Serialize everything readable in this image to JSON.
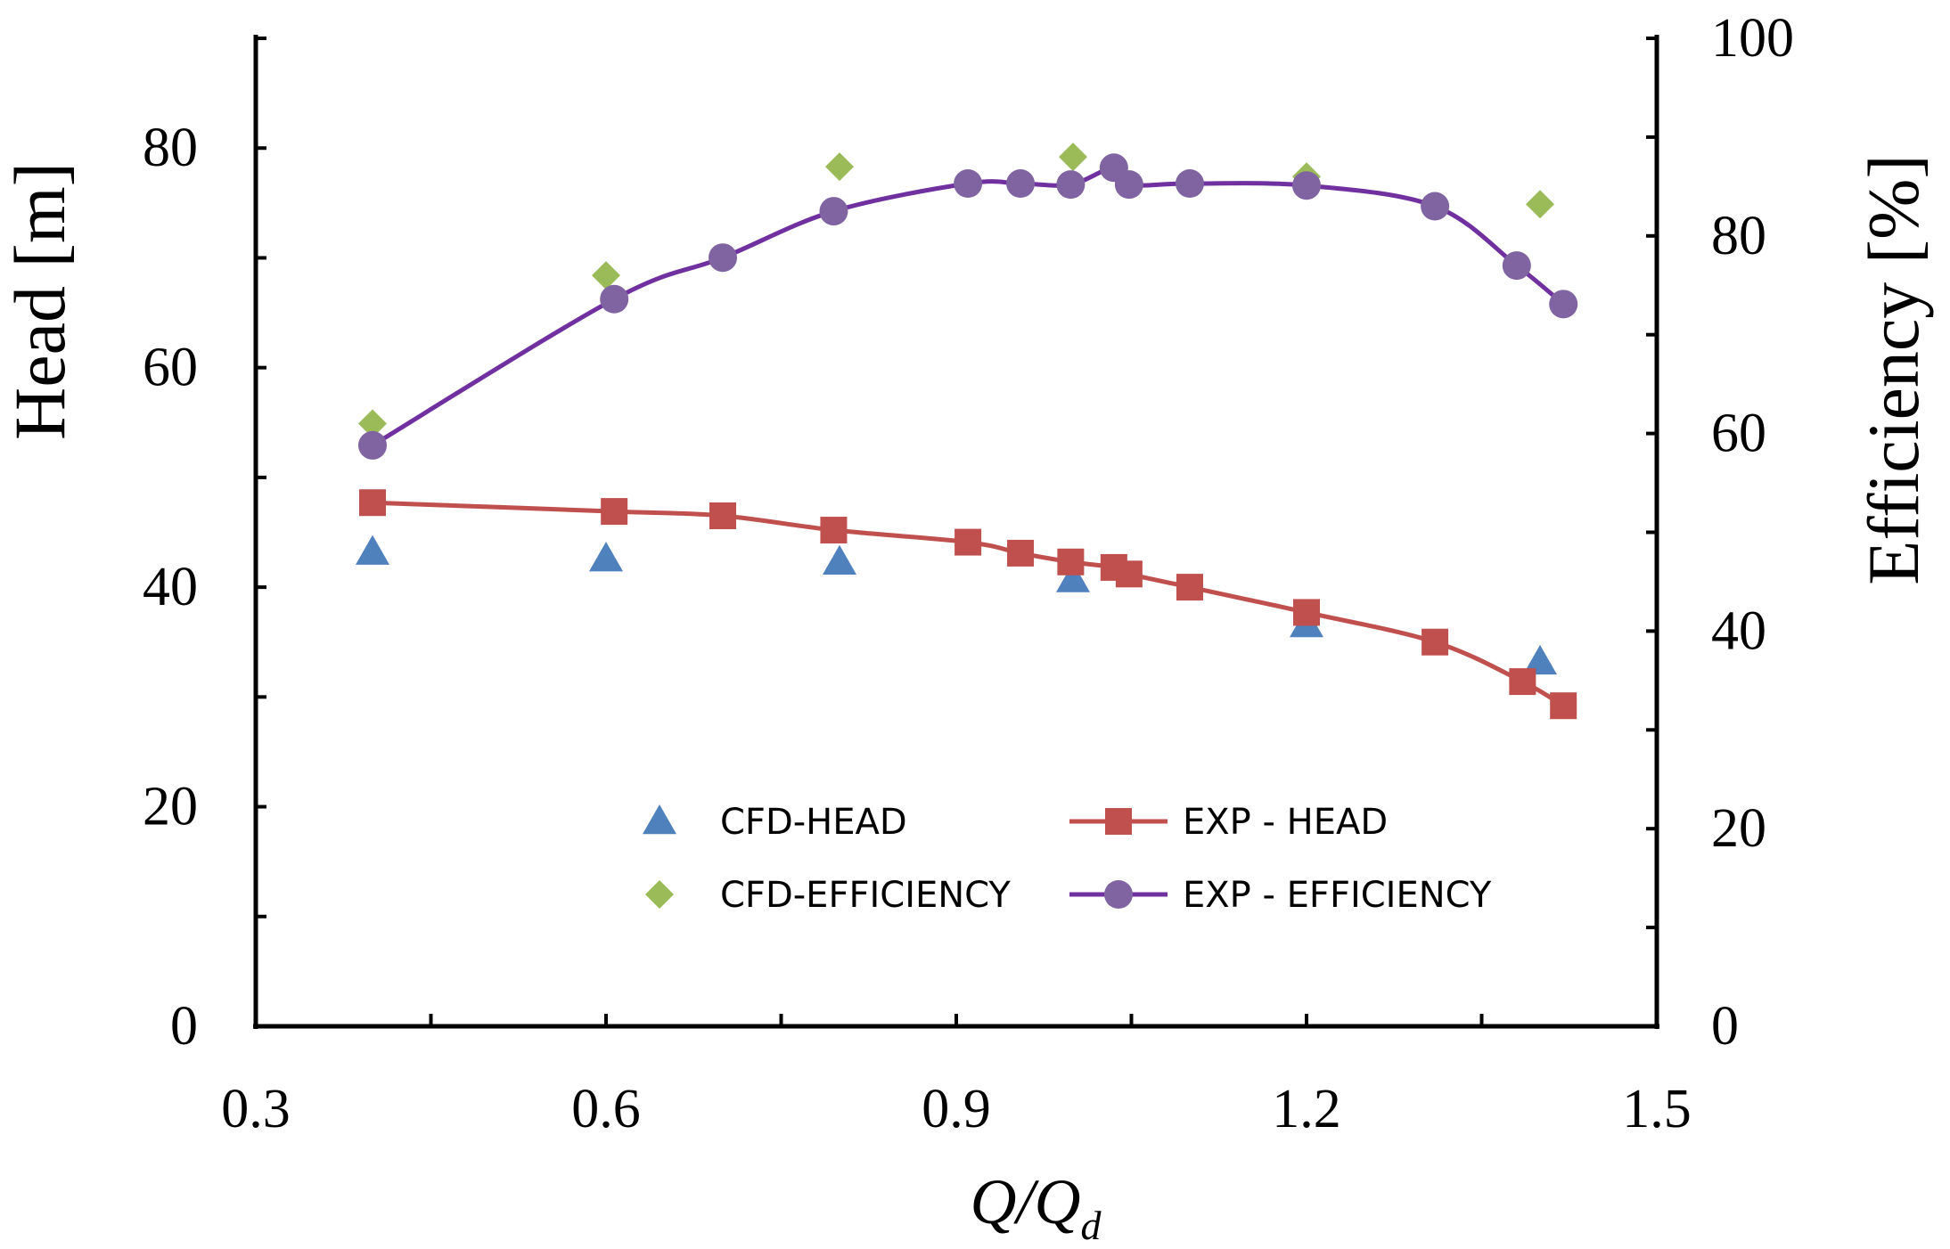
{
  "chart_data": {
    "type": "line",
    "x_axis": {
      "title": "Q/Q",
      "title_subscript": "d",
      "range": [
        0.3,
        1.5
      ],
      "ticks": [
        0.3,
        0.6,
        0.9,
        1.2,
        1.5
      ],
      "tick_labels": [
        "0.3",
        "0.6",
        "0.9",
        "1.2",
        "1.5"
      ]
    },
    "y_left": {
      "title": "Head [m]",
      "range": [
        0,
        90
      ],
      "ticks": [
        0,
        20,
        40,
        60,
        80
      ],
      "tick_labels": [
        "0",
        "20",
        "40",
        "60",
        "80"
      ]
    },
    "y_right": {
      "title": "Efficiency [%]",
      "range": [
        0,
        100
      ],
      "ticks": [
        0,
        20,
        40,
        60,
        80,
        100
      ],
      "tick_labels": [
        "0",
        "20",
        "40",
        "60",
        "80",
        "100"
      ]
    },
    "grid": false,
    "legend_position": "bottom-center",
    "series": [
      {
        "name": "CFD-HEAD",
        "axis": "left",
        "marker": "triangle",
        "line": false,
        "color": "#4f81bd",
        "x": [
          0.4,
          0.6,
          0.8,
          1.0,
          1.2,
          1.4
        ],
        "y": [
          43.2,
          42.6,
          42.3,
          40.7,
          36.6,
          33.2
        ]
      },
      {
        "name": "CFD-EFFICIENCY",
        "axis": "right",
        "marker": "diamond",
        "line": false,
        "color": "#9bbb59",
        "x": [
          0.4,
          0.6,
          0.8,
          1.0,
          1.2,
          1.4
        ],
        "y": [
          61.0,
          76.0,
          87.0,
          88.0,
          86.0,
          83.2
        ]
      },
      {
        "name": "EXP - HEAD",
        "axis": "left",
        "marker": "square",
        "line": true,
        "color": "#c0504d",
        "x": [
          0.4,
          0.607,
          0.7,
          0.795,
          0.91,
          0.955,
          0.998,
          1.035,
          1.048,
          1.1,
          1.2,
          1.31,
          1.385,
          1.42
        ],
        "y": [
          47.7,
          46.9,
          46.5,
          45.2,
          44.1,
          43.1,
          42.3,
          41.8,
          41.2,
          40.0,
          37.7,
          35.0,
          31.4,
          29.2
        ]
      },
      {
        "name": "EXP - EFFICIENCY",
        "axis": "right",
        "marker": "circle",
        "line": true,
        "color": "#7030a0",
        "marker_color": "#8064a2",
        "x": [
          0.4,
          0.607,
          0.7,
          0.795,
          0.91,
          0.955,
          0.998,
          1.035,
          1.048,
          1.1,
          1.2,
          1.31,
          1.38,
          1.42
        ],
        "y": [
          58.8,
          73.6,
          77.8,
          82.5,
          85.3,
          85.3,
          85.2,
          86.9,
          85.2,
          85.3,
          85.1,
          83.0,
          77.0,
          73.1
        ]
      }
    ]
  }
}
